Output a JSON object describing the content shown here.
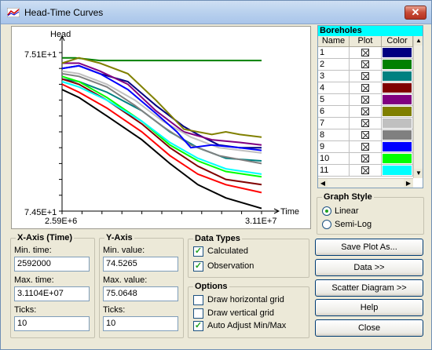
{
  "window": {
    "title": "Head-Time Curves",
    "close_glyph": "✕"
  },
  "plot": {
    "y_axis_label": "Head",
    "x_axis_label": "Time",
    "y_max_label": "7.51E+1",
    "y_min_label": "7.45E+1",
    "x_min_label": "2.59E+6",
    "x_max_label": "3.11E+7"
  },
  "chart_data": {
    "type": "line",
    "xlabel": "Time",
    "ylabel": "Head",
    "xlim": [
      2592000,
      31104000
    ],
    "ylim": [
      74.5,
      75.1
    ],
    "series": [
      {
        "color": "#000080",
        "x": [
          2592000,
          5000000,
          8000000,
          12000000,
          16000000,
          20000000,
          22000000,
          25000000,
          28000000,
          31104000
        ],
        "y": [
          75.04,
          75.05,
          75.02,
          74.99,
          74.9,
          74.82,
          74.79,
          74.75,
          74.74,
          74.74
        ]
      },
      {
        "color": "#008000",
        "x": [
          2592000,
          4500000,
          8000000,
          12000000,
          16000000,
          20000000,
          25000000,
          28000000,
          31104000
        ],
        "y": [
          75.08,
          75.08,
          75.07,
          75.07,
          75.07,
          75.07,
          75.07,
          75.07,
          75.07
        ]
      },
      {
        "color": "#008080",
        "x": [
          2592000,
          5000000,
          9000000,
          14000000,
          18000000,
          22000000,
          26000000,
          31104000
        ],
        "y": [
          75.0,
          74.99,
          74.95,
          74.88,
          74.8,
          74.74,
          74.7,
          74.69
        ]
      },
      {
        "color": "#800000",
        "x": [
          2592000,
          5000000,
          9000000,
          14000000,
          18000000,
          22000000,
          26000000,
          31104000
        ],
        "y": [
          75.0,
          74.98,
          74.92,
          74.83,
          74.74,
          74.67,
          74.62,
          74.6
        ]
      },
      {
        "color": "#800080",
        "x": [
          2592000,
          5000000,
          8000000,
          12000000,
          16000000,
          20000000,
          24000000,
          28000000,
          31104000
        ],
        "y": [
          75.06,
          75.06,
          75.03,
          74.98,
          74.88,
          74.8,
          74.77,
          74.76,
          74.75
        ]
      },
      {
        "color": "#808000",
        "x": [
          2592000,
          5000000,
          8000000,
          12000000,
          16000000,
          20000000,
          24000000,
          26000000,
          28000000,
          31104000
        ],
        "y": [
          75.06,
          75.08,
          75.06,
          75.02,
          74.92,
          74.81,
          74.79,
          74.8,
          74.79,
          74.78
        ]
      },
      {
        "color": "#c0c0c0",
        "x": [
          2592000,
          5000000,
          9000000,
          13000000,
          17000000,
          21000000,
          25000000,
          31104000
        ],
        "y": [
          75.03,
          75.02,
          74.98,
          74.92,
          74.84,
          74.78,
          74.74,
          74.72
        ]
      },
      {
        "color": "#808080",
        "x": [
          2592000,
          5000000,
          9000000,
          13000000,
          17000000,
          21000000,
          25000000,
          31104000
        ],
        "y": [
          75.02,
          75.01,
          74.97,
          74.9,
          74.82,
          74.75,
          74.71,
          74.68
        ]
      },
      {
        "color": "#0000ff",
        "x": [
          2592000,
          5000000,
          8000000,
          12000000,
          16000000,
          19000000,
          21000000,
          24000000,
          28000000,
          31104000
        ],
        "y": [
          75.04,
          75.05,
          75.02,
          74.96,
          74.87,
          74.8,
          74.74,
          74.75,
          74.74,
          74.73
        ]
      },
      {
        "color": "#00ff00",
        "x": [
          2592000,
          5000000,
          9000000,
          14000000,
          18000000,
          22000000,
          26000000,
          31104000
        ],
        "y": [
          75.01,
          74.99,
          74.93,
          74.84,
          74.75,
          74.69,
          74.65,
          74.63
        ]
      },
      {
        "color": "#00ffff",
        "x": [
          2592000,
          5000000,
          9000000,
          14000000,
          18000000,
          22000000,
          26000000,
          31104000
        ],
        "y": [
          74.99,
          74.97,
          74.92,
          74.84,
          74.76,
          74.7,
          74.66,
          74.64
        ]
      },
      {
        "color": "#ff0000",
        "x": [
          2592000,
          5000000,
          9000000,
          14000000,
          18000000,
          22000000,
          26000000,
          31104000
        ],
        "y": [
          74.98,
          74.95,
          74.89,
          74.8,
          74.71,
          74.64,
          74.6,
          74.57
        ]
      },
      {
        "color": "#000000",
        "x": [
          2592000,
          5000000,
          9000000,
          14000000,
          18000000,
          22000000,
          26000000,
          31104000
        ],
        "y": [
          74.96,
          74.93,
          74.86,
          74.77,
          74.68,
          74.6,
          74.55,
          74.51
        ]
      }
    ]
  },
  "boreholes": {
    "title": "Boreholes",
    "columns": [
      "Name",
      "Plot",
      "Color"
    ],
    "rows": [
      {
        "name": "1",
        "color": "#000080"
      },
      {
        "name": "2",
        "color": "#008000"
      },
      {
        "name": "3",
        "color": "#008080"
      },
      {
        "name": "4",
        "color": "#800000"
      },
      {
        "name": "5",
        "color": "#800080"
      },
      {
        "name": "6",
        "color": "#808000"
      },
      {
        "name": "7",
        "color": "#c0c0c0"
      },
      {
        "name": "8",
        "color": "#808080"
      },
      {
        "name": "9",
        "color": "#0000ff"
      },
      {
        "name": "10",
        "color": "#00ff00"
      },
      {
        "name": "11",
        "color": "#00ffff"
      }
    ]
  },
  "graph_style": {
    "title": "Graph Style",
    "linear": "Linear",
    "semilog": "Semi-Log",
    "selected": "linear"
  },
  "x_axis": {
    "title": "X-Axis (Time)",
    "min_label": "Min. time:",
    "min_value": "2592000",
    "max_label": "Max. time:",
    "max_value": "3.1104E+07",
    "ticks_label": "Ticks:",
    "ticks_value": "10"
  },
  "y_axis": {
    "title": "Y-Axis",
    "min_label": "Min. value:",
    "min_value": "74.5265",
    "max_label": "Max. value:",
    "max_value": "75.0648",
    "ticks_label": "Ticks:",
    "ticks_value": "10"
  },
  "data_types": {
    "title": "Data Types",
    "calculated": "Calculated",
    "observation": "Observation"
  },
  "options": {
    "title": "Options",
    "h_grid": "Draw horizontal grid",
    "v_grid": "Draw vertical grid",
    "auto_adjust": "Auto Adjust Min/Max"
  },
  "buttons": {
    "save_plot": "Save Plot As...",
    "data": "Data >>",
    "scatter": "Scatter Diagram >>",
    "help": "Help",
    "close": "Close"
  }
}
